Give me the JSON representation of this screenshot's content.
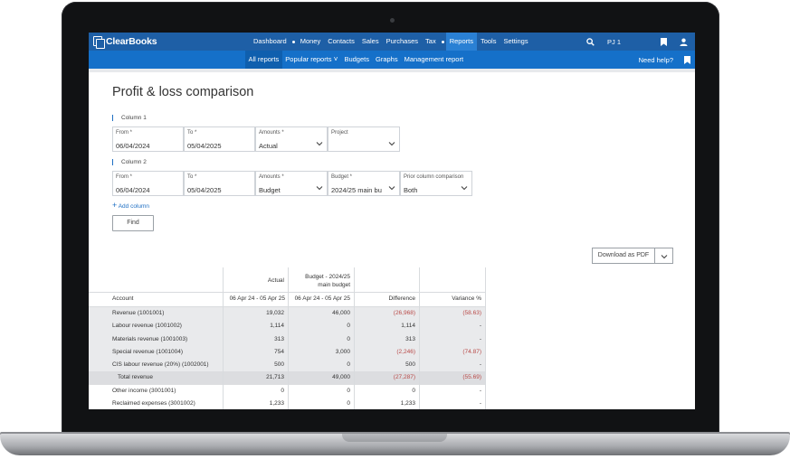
{
  "app": {
    "logo": "ClearBooks"
  },
  "topnav": {
    "items": [
      {
        "label": "Dashboard",
        "dot_after": true
      },
      {
        "label": "Money"
      },
      {
        "label": "Contacts"
      },
      {
        "label": "Sales"
      },
      {
        "label": "Purchases"
      },
      {
        "label": "Tax",
        "dot_after": true
      },
      {
        "label": "Reports",
        "active": true
      },
      {
        "label": "Tools"
      },
      {
        "label": "Settings"
      }
    ],
    "user": "PJ 1"
  },
  "subnav": {
    "items": [
      {
        "label": "All reports",
        "active": true
      },
      {
        "label": "Popular reports"
      },
      {
        "label": "Budgets"
      },
      {
        "label": "Graphs"
      },
      {
        "label": "Management report"
      }
    ],
    "help": "Need help?"
  },
  "page": {
    "title": "Profit & loss comparison"
  },
  "column1": {
    "label": "Column 1",
    "from": {
      "label": "From *",
      "value": "06/04/2024"
    },
    "to": {
      "label": "To *",
      "value": "05/04/2025"
    },
    "amounts": {
      "label": "Amounts *",
      "value": "Actual"
    },
    "project": {
      "label": "Project",
      "value": ""
    }
  },
  "column2": {
    "label": "Column 2",
    "from": {
      "label": "From *",
      "value": "06/04/2024"
    },
    "to": {
      "label": "To *",
      "value": "05/04/2025"
    },
    "amounts": {
      "label": "Amounts *",
      "value": "Budget"
    },
    "budget": {
      "label": "Budget *",
      "value": "2024/25 main bu"
    },
    "prior": {
      "label": "Prior column comparison",
      "value": "Both"
    }
  },
  "actions": {
    "add_column": "Add column",
    "find": "Find",
    "download": "Download as PDF"
  },
  "table": {
    "head_actual": "Actual",
    "head_budget_line1": "Budget - 2024/25",
    "head_budget_line2": "main budget",
    "col_account": "Account",
    "col_actual_period": "06 Apr 24 - 05 Apr 25",
    "col_budget_period": "06 Apr 24 - 05 Apr 25",
    "col_difference": "Difference",
    "col_variance": "Variance %",
    "rows": [
      {
        "account": "Revenue (1001001)",
        "actual": "19,032",
        "budget": "46,000",
        "difference": "(26,968)",
        "variance": "(58.63)",
        "shaded": true
      },
      {
        "account": "Labour revenue (1001002)",
        "actual": "1,114",
        "budget": "0",
        "difference": "1,114",
        "variance": "-",
        "shaded": true
      },
      {
        "account": "Materials revenue (1001003)",
        "actual": "313",
        "budget": "0",
        "difference": "313",
        "variance": "-",
        "shaded": true
      },
      {
        "account": "Special revenue (1001004)",
        "actual": "754",
        "budget": "3,000",
        "difference": "(2,246)",
        "variance": "(74.87)",
        "shaded": true
      },
      {
        "account": "CIS labour revenue (20%) (1002001)",
        "actual": "500",
        "budget": "0",
        "difference": "500",
        "variance": "-",
        "shaded": true
      },
      {
        "account": "Total revenue",
        "actual": "21,713",
        "budget": "49,000",
        "difference": "(27,287)",
        "variance": "(55.69)",
        "shaded": true,
        "total": true
      },
      {
        "account": "Other income (3001001)",
        "actual": "0",
        "budget": "0",
        "difference": "0",
        "variance": "-",
        "shaded": false
      },
      {
        "account": "Reclaimed expenses (3001002)",
        "actual": "1,233",
        "budget": "0",
        "difference": "1,233",
        "variance": "-",
        "shaded": false
      }
    ]
  }
}
